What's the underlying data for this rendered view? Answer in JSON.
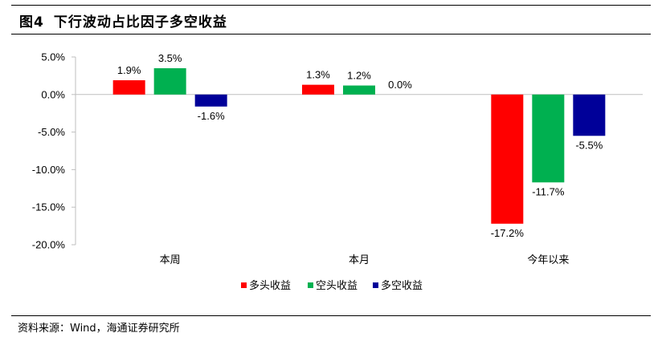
{
  "figure": {
    "number": "图4",
    "title": "下行波动占比因子多空收益",
    "source": "资料来源：Wind，海通证券研究所"
  },
  "colors": {
    "long": "#ff0000",
    "short": "#00b050",
    "long_short": "#000099",
    "axis": "#bfbfbf",
    "text": "#000000"
  },
  "chart_data": {
    "type": "bar",
    "categories": [
      "本周",
      "本月",
      "今年以来"
    ],
    "series": [
      {
        "name": "多头收益",
        "values": [
          1.9,
          1.3,
          -17.2
        ],
        "labels": [
          "1.9%",
          "1.3%",
          "-17.2%"
        ]
      },
      {
        "name": "空头收益",
        "values": [
          3.5,
          1.2,
          -11.7
        ],
        "labels": [
          "3.5%",
          "1.2%",
          "-11.7%"
        ]
      },
      {
        "name": "多空收益",
        "values": [
          -1.6,
          0.0,
          -5.5
        ],
        "labels": [
          "-1.6%",
          "0.0%",
          "-5.5%"
        ]
      }
    ],
    "yticks": [
      5,
      0,
      -5,
      -10,
      -15,
      -20
    ],
    "ytick_labels": [
      "5.0%",
      "0.0%",
      "-5.0%",
      "-10.0%",
      "-15.0%",
      "-20.0%"
    ],
    "ylim": [
      -20,
      5
    ],
    "grid": false,
    "legend_position": "bottom"
  }
}
